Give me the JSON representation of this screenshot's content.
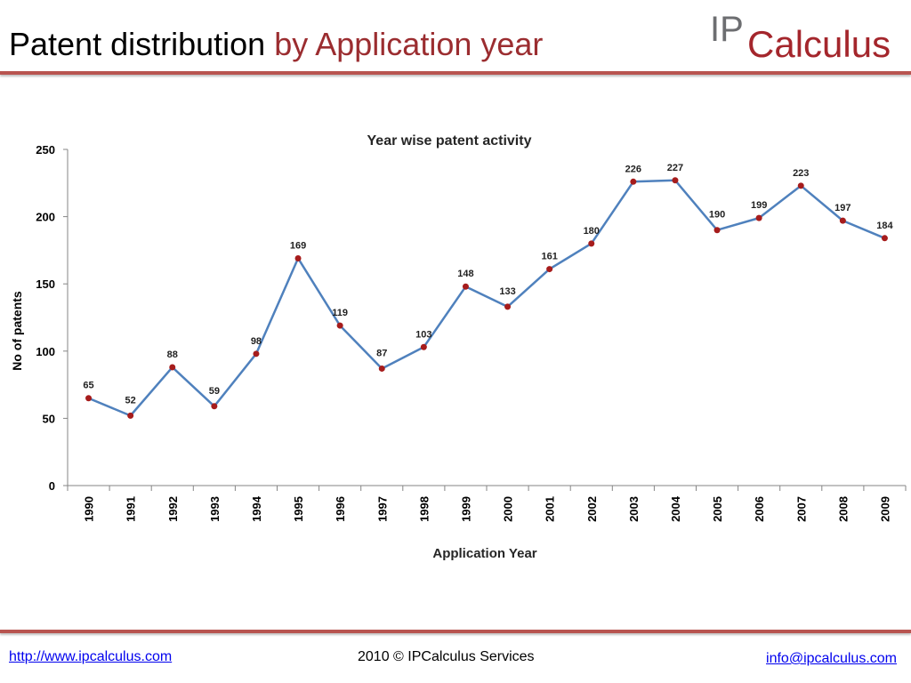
{
  "slide": {
    "title_main": "Patent distribution",
    "title_accent": "by Application year",
    "logo_text_prefix": "IP",
    "logo_text_suffix": "Calculus"
  },
  "footer": {
    "left_link": "http://www.ipcalculus.com",
    "center_text": "2010 © IPCalculus Services",
    "right_link": "info@ipcalculus.com"
  },
  "colors": {
    "accent": "#9b2d30",
    "rule": "#b85450",
    "series_line": "#4f81bd",
    "marker": "#a61c1c",
    "logo_gray": "#6d6e71",
    "logo_red": "#a4262c"
  },
  "chart_data": {
    "type": "line",
    "title": "Year wise patent activity",
    "xlabel": "Application Year",
    "ylabel": "No of patents",
    "categories": [
      "1990",
      "1991",
      "1992",
      "1993",
      "1994",
      "1995",
      "1996",
      "1997",
      "1998",
      "1999",
      "2000",
      "2001",
      "2002",
      "2003",
      "2004",
      "2005",
      "2006",
      "2007",
      "2008",
      "2009"
    ],
    "series": [
      {
        "values": [
          65,
          52,
          88,
          59,
          98,
          169,
          119,
          87,
          103,
          148,
          133,
          161,
          180,
          226,
          227,
          190,
          199,
          223,
          197,
          184
        ]
      }
    ],
    "ylim": [
      0,
      250
    ],
    "yticks": [
      0,
      50,
      100,
      150,
      200,
      250
    ],
    "data_labels": true,
    "grid": false,
    "legend": "none"
  }
}
